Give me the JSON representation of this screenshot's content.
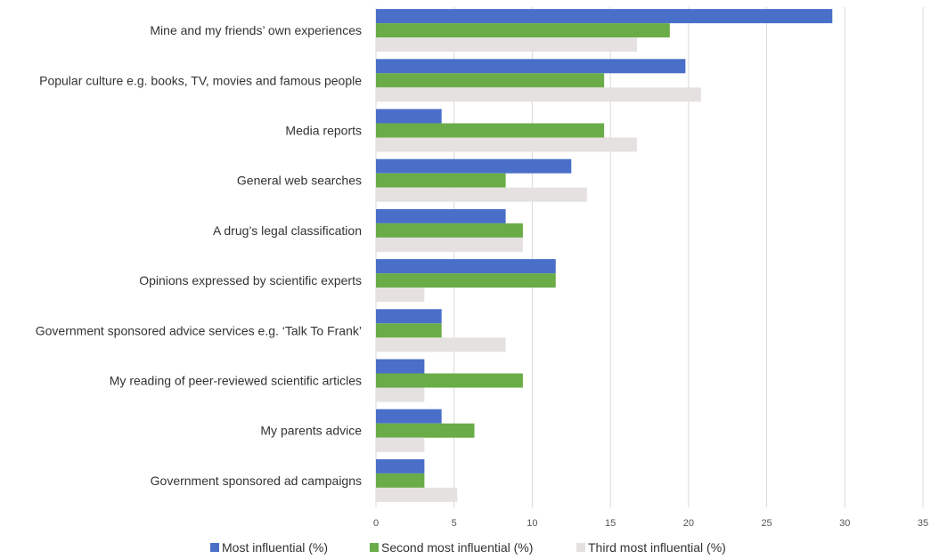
{
  "chart_data": {
    "type": "bar",
    "orientation": "horizontal",
    "categories": [
      "Mine and my friends’ own experiences",
      "Popular culture e.g. books, TV, movies and famous people",
      "Media reports",
      "General web searches",
      "A drug’s legal classification",
      "Opinions expressed by scientific experts",
      "Government sponsored advice services e.g. ‘Talk To Frank’",
      "My reading of peer-reviewed scientific articles",
      "My parents advice",
      "Government sponsored ad campaigns"
    ],
    "series": [
      {
        "name": "Most influential (%)",
        "color": "#4a6fc9",
        "values": [
          29.2,
          19.8,
          4.2,
          12.5,
          8.3,
          11.5,
          4.2,
          3.1,
          4.2,
          3.1
        ]
      },
      {
        "name": "Second most influential (%)",
        "color": "#6aac47",
        "values": [
          18.8,
          14.6,
          14.6,
          8.3,
          9.4,
          11.5,
          4.2,
          9.4,
          6.3,
          3.1
        ]
      },
      {
        "name": "Third most influential (%)",
        "color": "#e6e1e1",
        "values": [
          16.7,
          20.8,
          16.7,
          13.5,
          9.4,
          3.1,
          8.3,
          3.1,
          3.1,
          5.2
        ]
      }
    ],
    "xlim": [
      0,
      35
    ],
    "xticks": [
      0,
      5,
      10,
      15,
      20,
      25,
      30,
      35
    ],
    "grid": true,
    "legend_position": "bottom",
    "title": "",
    "xlabel": "",
    "ylabel": ""
  }
}
